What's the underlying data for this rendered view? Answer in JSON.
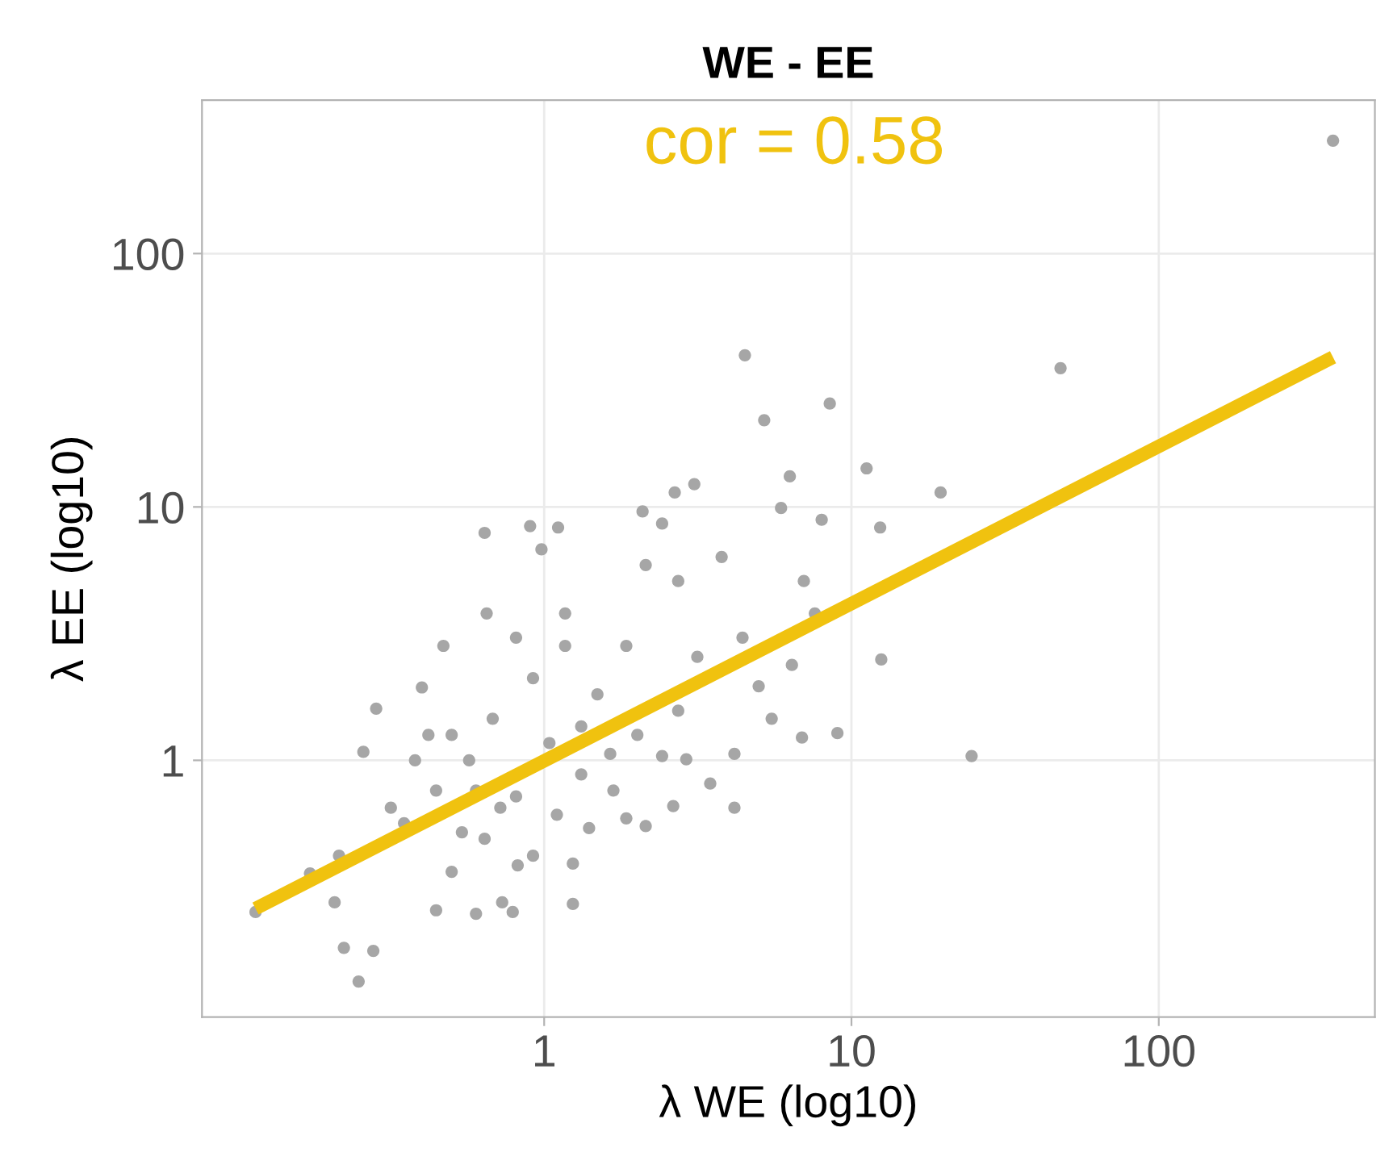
{
  "chart_data": {
    "type": "scatter",
    "title": "WE - EE",
    "xlabel": "λ WE (log10)",
    "ylabel": "λ EE (log10)",
    "annotations": [
      "cor = 0.58"
    ],
    "log": "xy",
    "grid": true,
    "legend": false,
    "xlim": [
      0.077,
      505
    ],
    "ylim": [
      0.097,
      403
    ],
    "xticks": [
      1,
      10,
      100
    ],
    "yticks": [
      1,
      10,
      100
    ],
    "series": [
      {
        "marker": "circle",
        "color": "#a6a6a6",
        "x": [
          369,
          47.9,
          4.5,
          8.5,
          5.2,
          24.6,
          19.5,
          11.2,
          12.4,
          12.5,
          3.08,
          2.66,
          6.3,
          5.9,
          8.0,
          2.09,
          2.42,
          0.9,
          1.11,
          0.98,
          0.115,
          0.249,
          0.223,
          0.278,
          0.208,
          0.173,
          0.284,
          0.4,
          0.258,
          0.6,
          0.445,
          0.73,
          0.82,
          1.24,
          1.4,
          1.85,
          2.14,
          2.63,
          4.16,
          4.16,
          2.42,
          3.47,
          1.85,
          2.14,
          2.73,
          3.78,
          4.42,
          3.15,
          6.4,
          7.0,
          7.6,
          4.99,
          5.5,
          6.9,
          9.0,
          0.64,
          0.65,
          0.47,
          0.42,
          0.38,
          0.317,
          0.215,
          0.54,
          0.5,
          1.24,
          0.79,
          1.64,
          0.57,
          0.68,
          0.81,
          1.04,
          1.32,
          0.92,
          1.17,
          1.49,
          1.68,
          0.72,
          0.6,
          1.1,
          1.32,
          2.01,
          2.73,
          2.9,
          1.17,
          0.81,
          0.5,
          0.445,
          0.35,
          0.64,
          0.92
        ],
        "values": [
          279,
          35.3,
          39.7,
          25.6,
          22,
          1.04,
          11.4,
          14.2,
          8.3,
          2.5,
          12.3,
          11.4,
          13.2,
          9.9,
          8.9,
          9.6,
          8.6,
          8.4,
          8.3,
          6.8,
          0.252,
          0.134,
          0.182,
          0.177,
          0.275,
          0.358,
          1.6,
          1.94,
          1.08,
          0.248,
          0.256,
          0.275,
          0.385,
          0.391,
          0.54,
          0.59,
          0.55,
          0.66,
          1.06,
          0.65,
          1.04,
          0.81,
          2.83,
          5.9,
          5.1,
          6.35,
          3.05,
          2.56,
          2.38,
          5.1,
          3.8,
          1.96,
          1.46,
          1.23,
          1.28,
          7.9,
          3.8,
          2.83,
          1.26,
          1.0,
          0.65,
          0.42,
          0.52,
          0.363,
          0.271,
          0.252,
          1.06,
          1.0,
          1.46,
          0.72,
          1.17,
          1.36,
          2.11,
          2.83,
          1.82,
          0.76,
          0.65,
          0.76,
          0.61,
          0.88,
          1.26,
          1.57,
          1.01,
          3.8,
          3.05,
          1.26,
          0.76,
          0.565,
          0.49,
          0.42
        ]
      },
      {
        "type": "line",
        "color": "#f0c20f",
        "x": [
          0.115,
          369
        ],
        "values": [
          0.26,
          39
        ]
      }
    ]
  }
}
